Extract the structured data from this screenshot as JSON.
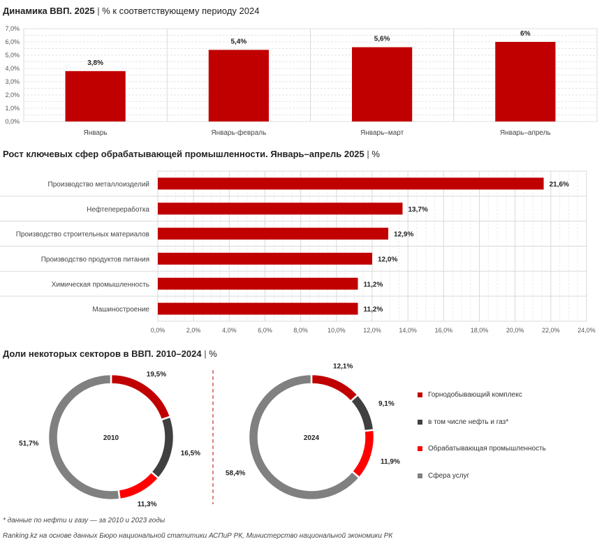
{
  "titles": {
    "chart1_bold": "Динамика ВВП. 2025",
    "chart1_rest": "% к соответствующему периоду 2024",
    "chart2_bold": "Рост ключевых сфер обрабатывающей промышленности. Январь–апрель 2025",
    "chart2_rest": "%",
    "chart3_bold": "Доли некоторых секторов в ВВП. 2010–2024",
    "chart3_rest": "%",
    "separator": "|"
  },
  "colors": {
    "bar": "#c00000",
    "mining": "#c00000",
    "oil_gas": "#404040",
    "manufacturing": "#ff0000",
    "services": "#808080"
  },
  "chart_data": [
    {
      "type": "bar",
      "title": "Динамика ВВП. 2025 | % к соответствующему периоду 2024",
      "categories": [
        "Январь",
        "Январь-февраль",
        "Январь–март",
        "Январь–апрель"
      ],
      "values": [
        3.8,
        5.4,
        5.6,
        6.0
      ],
      "value_labels": [
        "3,8%",
        "5,4%",
        "5,6%",
        "6%"
      ],
      "ylim": [
        0,
        7
      ],
      "yticks": [
        "0,0%",
        "1,0%",
        "2,0%",
        "3,0%",
        "4,0%",
        "5,0%",
        "6,0%",
        "7,0%"
      ],
      "grid": true
    },
    {
      "type": "bar",
      "orientation": "horizontal",
      "title": "Рост ключевых сфер обрабатывающей промышленности. Январь–апрель 2025 | %",
      "categories": [
        "Производство металлоизделий",
        "Нефтепереработка",
        "Производство строительных материалов",
        "Производство продуктов питания",
        "Химическая промышленность",
        "Машиностроение"
      ],
      "values": [
        21.6,
        13.7,
        12.9,
        12.0,
        11.2,
        11.2
      ],
      "value_labels": [
        "21,6%",
        "13,7%",
        "12,9%",
        "12,0%",
        "11,2%",
        "11,2%"
      ],
      "xlim": [
        0,
        24
      ],
      "xticks": [
        "0,0%",
        "2,0%",
        "4,0%",
        "6,0%",
        "8,0%",
        "10,0%",
        "12,0%",
        "14,0%",
        "16,0%",
        "18,0%",
        "20,0%",
        "22,0%",
        "24,0%"
      ],
      "grid": true
    },
    {
      "type": "pie",
      "variant": "donut",
      "center_label": "2010",
      "slices": [
        {
          "label": "Горнодобывающий комплекс",
          "value": 19.5,
          "value_label": "19,5%"
        },
        {
          "label": "в том числе нефть и газ*",
          "value": 16.5,
          "value_label": "16,5%"
        },
        {
          "label": "Обрабатывающая промышленность",
          "value": 11.3,
          "value_label": "11,3%"
        },
        {
          "label": "Сфера услуг",
          "value": 51.7,
          "value_label": "51,7%"
        }
      ]
    },
    {
      "type": "pie",
      "variant": "donut",
      "center_label": "2024",
      "slices": [
        {
          "label": "Горнодобывающий комплекс",
          "value": 12.1,
          "value_label": "12,1%"
        },
        {
          "label": "в том числе нефть и газ*",
          "value": 9.1,
          "value_label": "9,1%"
        },
        {
          "label": "Обрабатывающая промышленность",
          "value": 11.9,
          "value_label": "11,9%"
        },
        {
          "label": "Сфера услуг",
          "value": 58.4,
          "value_label": "58,4%"
        }
      ],
      "legend_position": "right"
    }
  ],
  "legend": [
    {
      "label": "Горнодобывающий комплекс",
      "color_key": "mining"
    },
    {
      "label": "в том числе нефть и газ*",
      "color_key": "oil_gas"
    },
    {
      "label": "Обрабатывающая промышленность",
      "color_key": "manufacturing"
    },
    {
      "label": "Сфера услуг",
      "color_key": "services"
    }
  ],
  "footnotes": {
    "note": "* данные по нефти и газу — за 2010 и 2023 годы",
    "source": "Ranking.kz на основе данных Бюро национальной статитики АСПиР РК, Министерство национальной экономики РК"
  }
}
